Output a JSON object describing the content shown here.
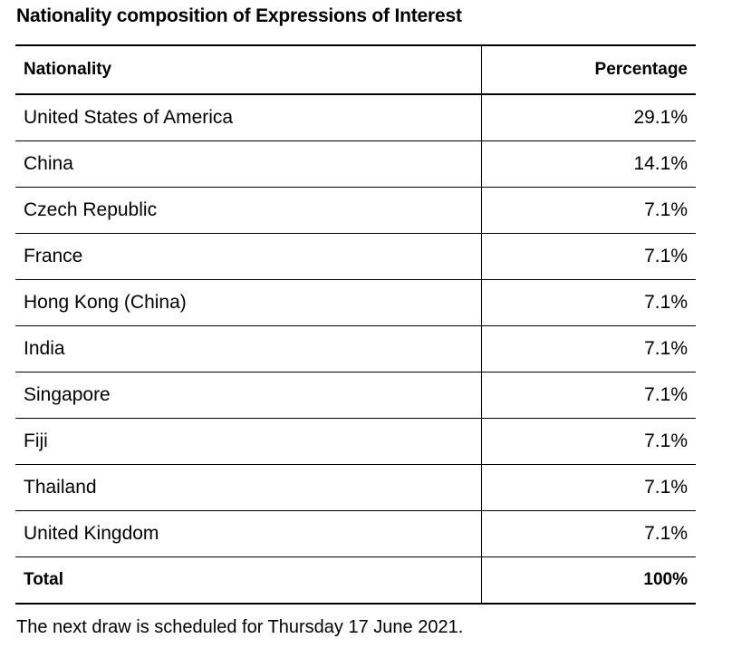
{
  "chart_data": {
    "type": "table",
    "title": "Nationality composition of Expressions of Interest",
    "columns": [
      "Nationality",
      "Percentage"
    ],
    "rows": [
      {
        "nationality": "United States of America",
        "percentage": "29.1%"
      },
      {
        "nationality": "China",
        "percentage": "14.1%"
      },
      {
        "nationality": "Czech Republic",
        "percentage": "7.1%"
      },
      {
        "nationality": "France",
        "percentage": "7.1%"
      },
      {
        "nationality": "Hong Kong (China)",
        "percentage": "7.1%"
      },
      {
        "nationality": "India",
        "percentage": "7.1%"
      },
      {
        "nationality": "Singapore",
        "percentage": "7.1%"
      },
      {
        "nationality": "Fiji",
        "percentage": "7.1%"
      },
      {
        "nationality": "Thailand",
        "percentage": "7.1%"
      },
      {
        "nationality": "United Kingdom",
        "percentage": "7.1%"
      }
    ],
    "total": {
      "label": "Total",
      "value": "100%"
    }
  },
  "footnote": "The next draw is scheduled for Thursday 17 June 2021."
}
